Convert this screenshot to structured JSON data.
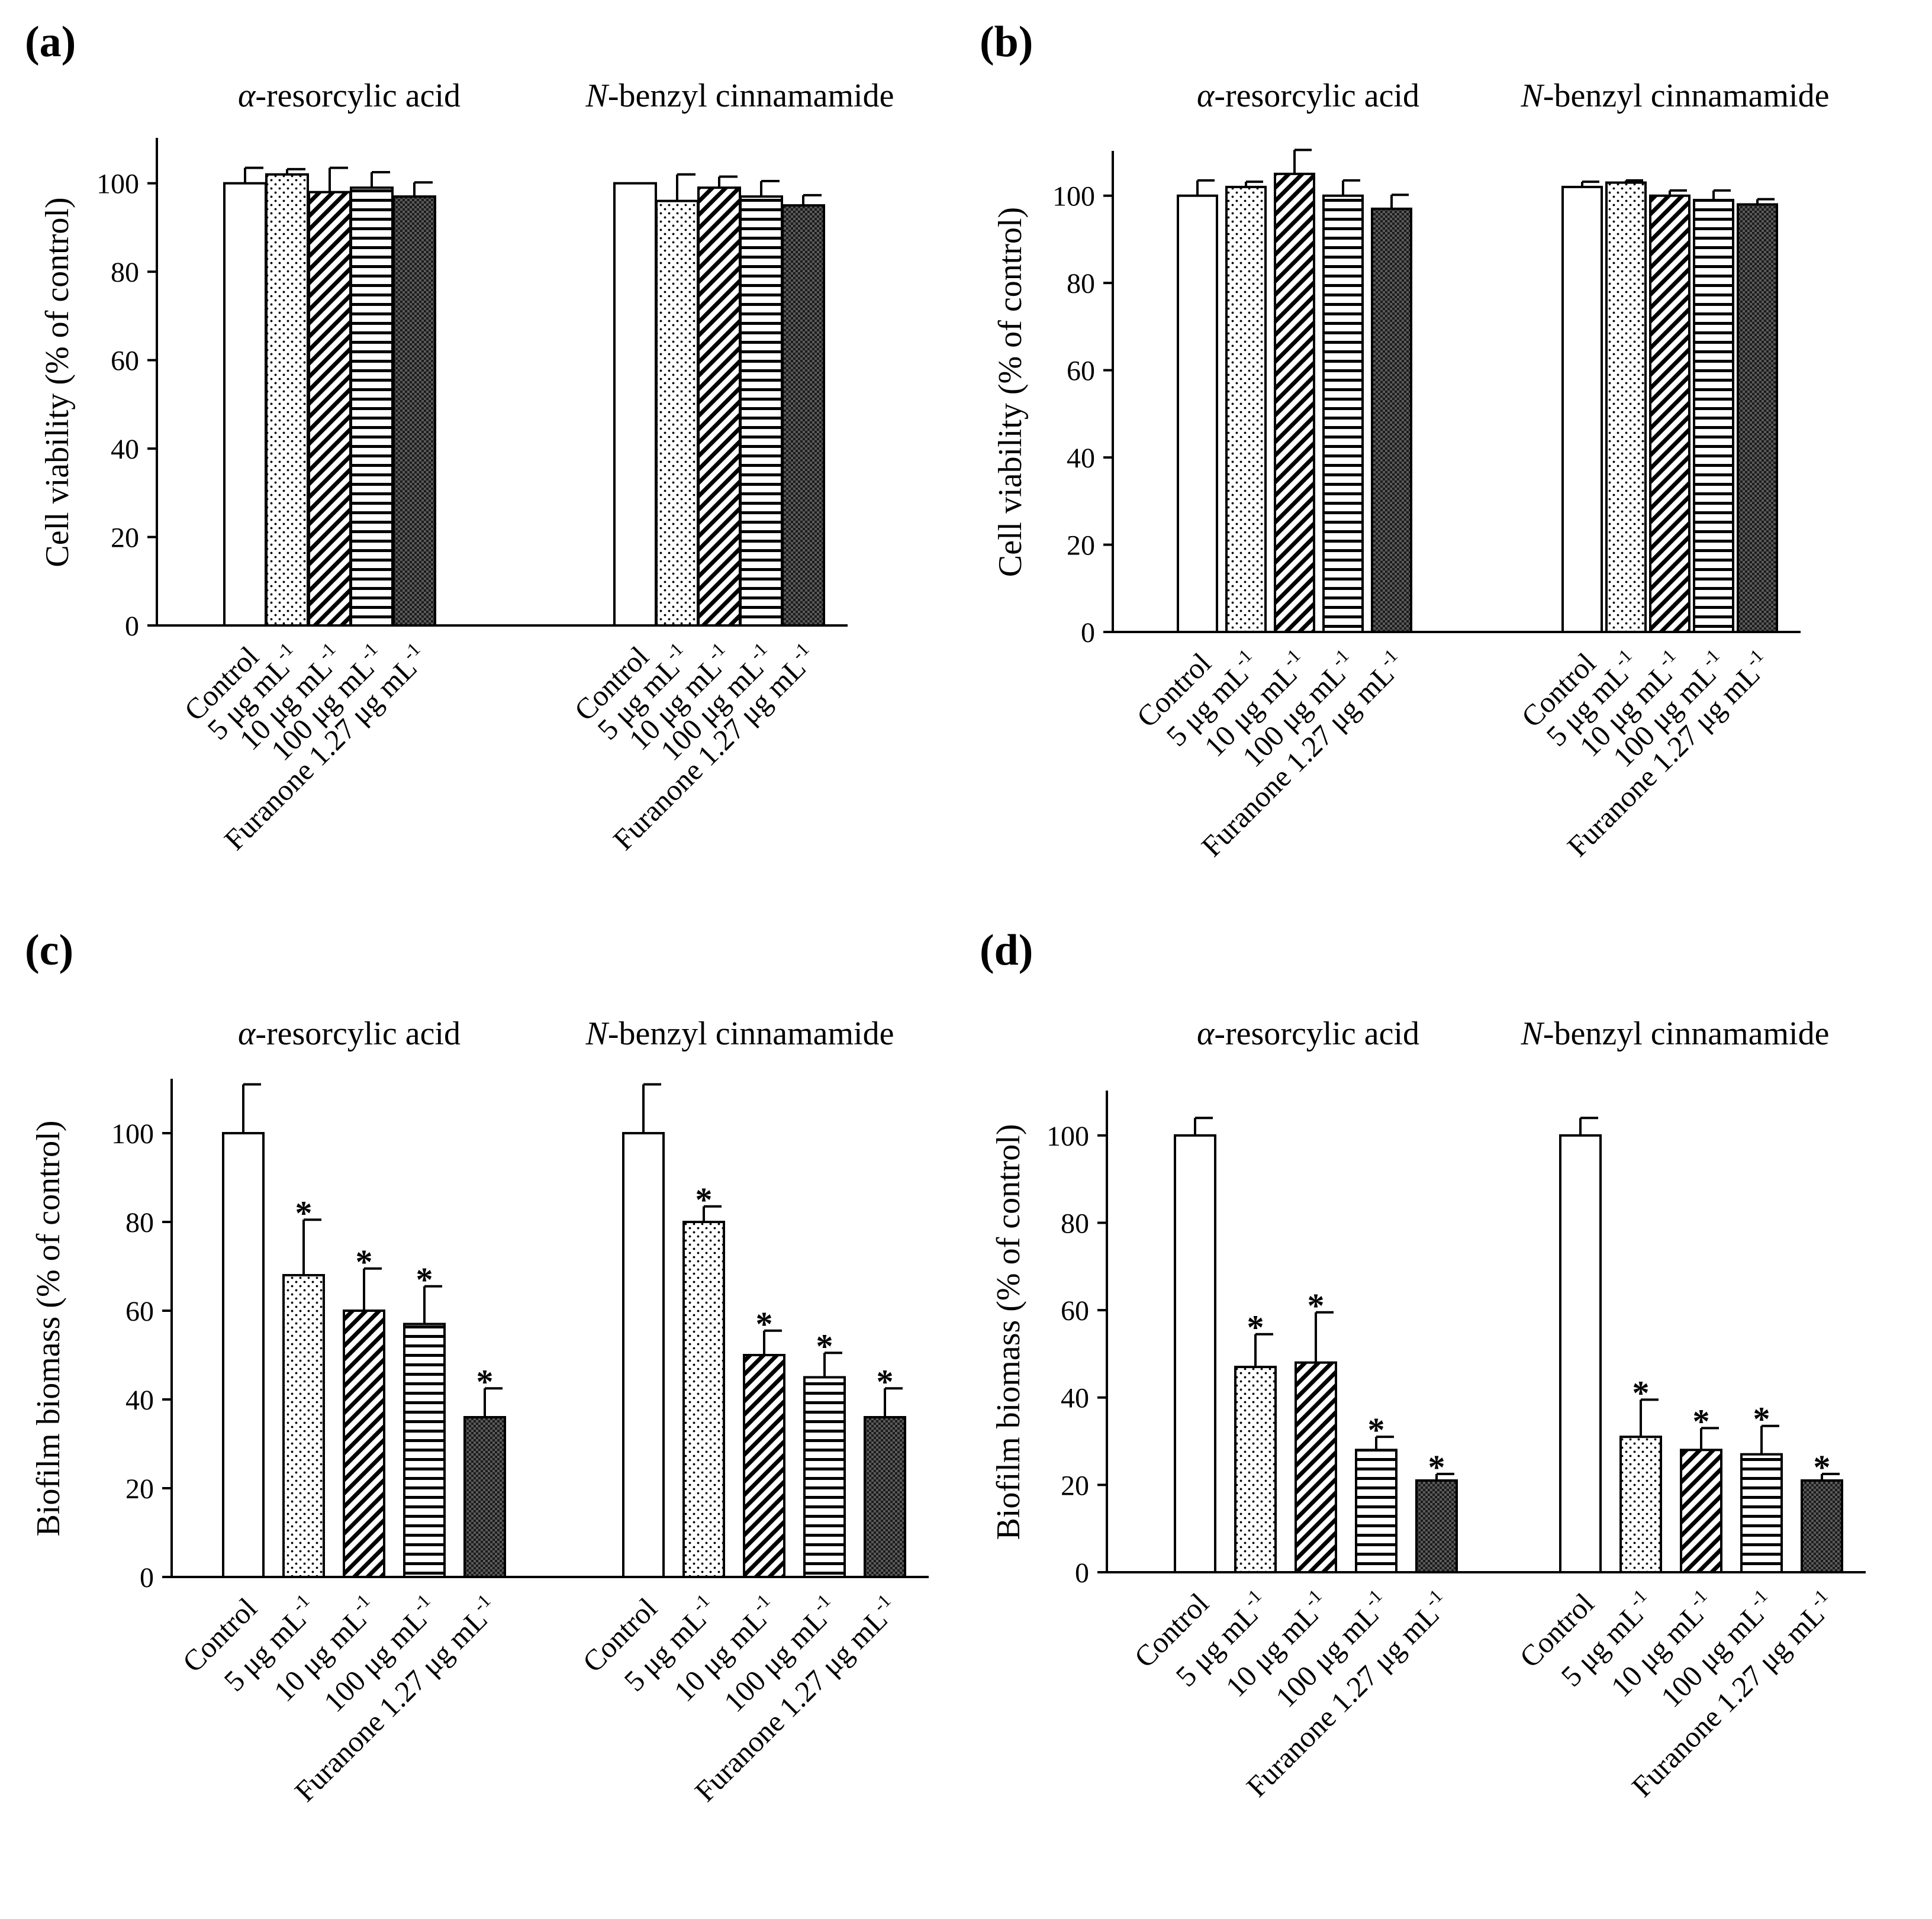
{
  "figure": {
    "panels": [
      "(a)",
      "(b)",
      "(c)",
      "(d)"
    ]
  },
  "chart_data": [
    {
      "panel": "(a)",
      "type": "bar",
      "ylabel": "Cell viability  (% of control)",
      "ylim": [
        0,
        110
      ],
      "yticks": [
        "0",
        "20",
        "40",
        "60",
        "80",
        "100"
      ],
      "groups": [
        {
          "title_italic": "α",
          "title_rest": "-resorcylic acid",
          "categories": [
            "Control",
            "5 μg mL",
            "10 μg mL",
            "100 μg mL",
            "Furanone 1.27 μg mL"
          ],
          "values": [
            100,
            102,
            98,
            99,
            97
          ],
          "errors": [
            3.5,
            1.2,
            5.5,
            3.5,
            3.2
          ],
          "significant": [
            false,
            false,
            false,
            false,
            false
          ]
        },
        {
          "title_italic": "N",
          "title_rest": "-benzyl cinnamamide",
          "categories": [
            "Control",
            "5 μg mL",
            "10 μg mL",
            "100 μg mL",
            "Furanone 1.27 μg mL"
          ],
          "values": [
            100,
            96,
            99,
            97,
            95
          ],
          "errors": [
            0,
            6,
            2.5,
            3.5,
            2.3
          ],
          "significant": [
            false,
            false,
            false,
            false,
            false
          ]
        }
      ],
      "unit_superscript": "-1",
      "patterns": [
        "white",
        "dots",
        "diagonal",
        "horizontal",
        "checker"
      ]
    },
    {
      "panel": "(b)",
      "type": "bar",
      "ylabel": "Cell viability  (% of control)",
      "ylim": [
        0,
        110
      ],
      "yticks": [
        "0",
        "20",
        "40",
        "60",
        "80",
        "100"
      ],
      "groups": [
        {
          "title_italic": "α",
          "title_rest": "-resorcylic acid",
          "categories": [
            "Control",
            "5 μg mL",
            "10 μg mL",
            "100 μg mL",
            "Furanone 1.27 μg mL"
          ],
          "values": [
            100,
            102,
            105,
            100,
            97
          ],
          "errors": [
            3.5,
            1.2,
            5.5,
            3.5,
            3.2
          ],
          "significant": [
            false,
            false,
            false,
            false,
            false
          ]
        },
        {
          "title_italic": "N",
          "title_rest": "-benzyl cinnamamide",
          "categories": [
            "Control",
            "5 μg mL",
            "10 μg mL",
            "100 μg mL",
            "Furanone 1.27 μg mL"
          ],
          "values": [
            102,
            103,
            100,
            99,
            98
          ],
          "errors": [
            1.2,
            0.5,
            1.2,
            2.2,
            1.2
          ],
          "significant": [
            false,
            false,
            false,
            false,
            false
          ]
        }
      ],
      "unit_superscript": "-1",
      "patterns": [
        "white",
        "dots",
        "diagonal",
        "horizontal",
        "checker"
      ]
    },
    {
      "panel": "(c)",
      "type": "bar",
      "ylabel": "Biofilm biomass (% of control)",
      "ylim": [
        0,
        112
      ],
      "yticks": [
        "0",
        "20",
        "40",
        "60",
        "80",
        "100"
      ],
      "groups": [
        {
          "title_italic": "α",
          "title_rest": "-resorcylic acid",
          "categories": [
            "Control",
            "5 μg mL",
            "10 μg mL",
            "100 μg mL",
            "Furanone 1.27 μg mL"
          ],
          "values": [
            100,
            68,
            60,
            57,
            36
          ],
          "errors": [
            11,
            12.5,
            9.5,
            8.5,
            6.5
          ],
          "significant": [
            false,
            true,
            true,
            true,
            true
          ]
        },
        {
          "title_italic": "N",
          "title_rest": "-benzyl cinnamamide",
          "categories": [
            "Control",
            "5 μg mL",
            "10 μg mL",
            "100 μg mL",
            "Furanone 1.27 μg mL"
          ],
          "values": [
            100,
            80,
            50,
            45,
            36
          ],
          "errors": [
            11,
            3.5,
            5.5,
            5.5,
            6.5
          ],
          "significant": [
            false,
            true,
            true,
            true,
            true
          ]
        }
      ],
      "unit_superscript": "-1",
      "patterns": [
        "white",
        "dots",
        "diagonal",
        "horizontal",
        "checker"
      ]
    },
    {
      "panel": "(d)",
      "type": "bar",
      "ylabel": "Biofilm biomass (% of control)",
      "ylim": [
        0,
        110
      ],
      "yticks": [
        "0",
        "20",
        "40",
        "60",
        "80",
        "100"
      ],
      "groups": [
        {
          "title_italic": "α",
          "title_rest": "-resorcylic acid",
          "categories": [
            "Control",
            "5 μg mL",
            "10 μg mL",
            "100 μg mL",
            "Furanone 1.27 μg mL"
          ],
          "values": [
            100,
            47,
            48,
            28,
            21
          ],
          "errors": [
            4,
            7.5,
            11.5,
            3,
            1.5
          ],
          "significant": [
            false,
            true,
            true,
            true,
            true
          ]
        },
        {
          "title_italic": "N",
          "title_rest": "-benzyl cinnamamide",
          "categories": [
            "Control",
            "5 μg mL",
            "10 μg mL",
            "100 μg mL",
            "Furanone 1.27 μg mL"
          ],
          "values": [
            100,
            31,
            28,
            27,
            21
          ],
          "errors": [
            4,
            8.5,
            5,
            6.5,
            1.5
          ],
          "significant": [
            false,
            true,
            true,
            true,
            true
          ]
        }
      ],
      "unit_superscript": "-1",
      "patterns": [
        "white",
        "dots",
        "diagonal",
        "horizontal",
        "checker"
      ]
    }
  ]
}
